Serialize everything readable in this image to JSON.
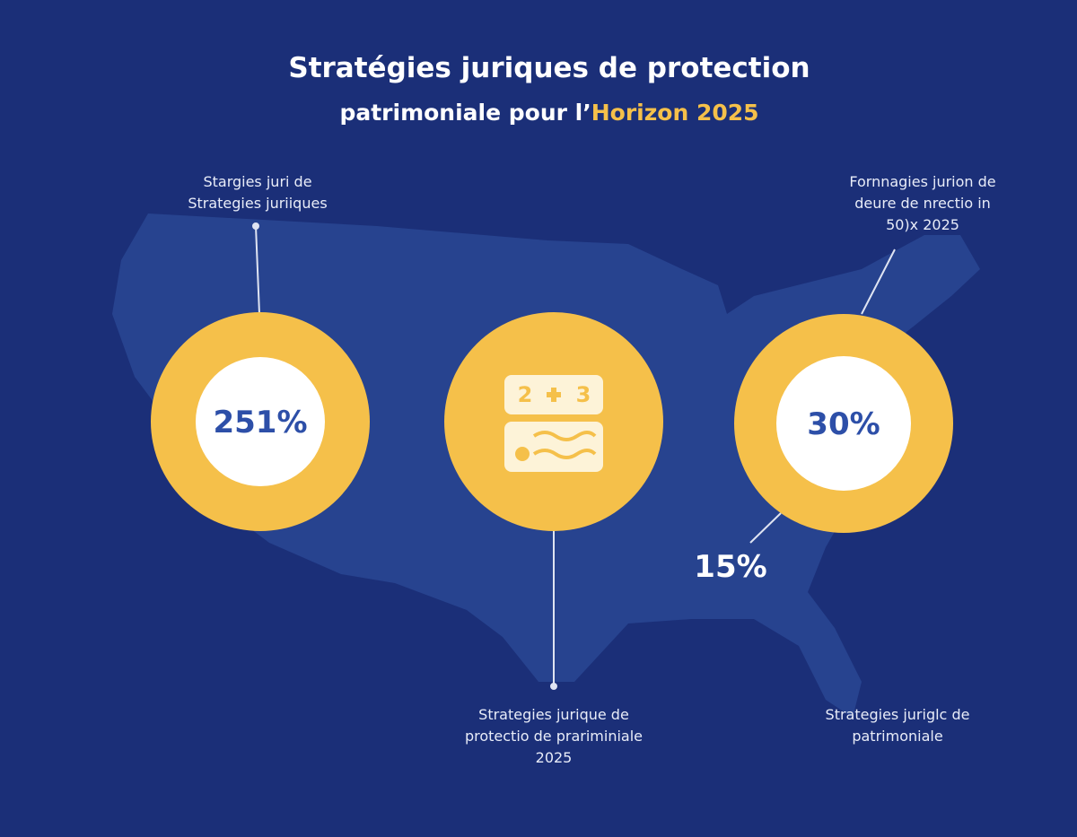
{
  "title": {
    "line1": "Stratégies juriques de protection",
    "line2": "patrimoniale pour l’",
    "highlight": "Horizon 2025"
  },
  "labels": {
    "top_left": [
      "Stargies juri de",
      "Strategies juriiques"
    ],
    "top_right": [
      "Fornnagies jurion de",
      "deure de nrectio in",
      "50)x 2025"
    ],
    "bottom_center": [
      "Strategies jurique de",
      "protectio de prariminiale",
      "2025"
    ],
    "bottom_right": [
      "Strategies juriglc de",
      "patrimoniale"
    ]
  },
  "circles": {
    "left": "251%",
    "right": "30%",
    "outside": "15%"
  },
  "icon": {
    "left": "2",
    "right": "3"
  }
}
